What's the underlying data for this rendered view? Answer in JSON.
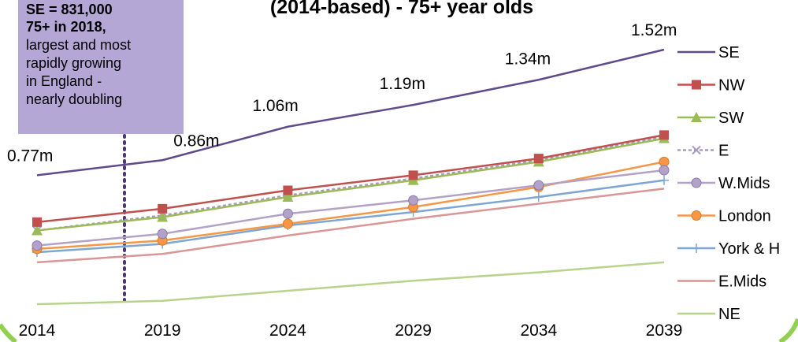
{
  "title_fragment": "(2014-based) - 75+ year olds",
  "callout": {
    "bold_line1": "SE = 831,000",
    "bold_line2": "75+ in 2018,",
    "line3": "largest and most",
    "line4": "rapidly growing",
    "line5": "in England -",
    "line6": "nearly doubling"
  },
  "se_labels": [
    "0.77m",
    "0.86m",
    "1.06m",
    "1.19m",
    "1.34m",
    "1.52m"
  ],
  "chart_data": {
    "type": "line",
    "x": [
      2014,
      2019,
      2024,
      2029,
      2034,
      2039
    ],
    "ylim": [
      0,
      1.6
    ],
    "series": [
      {
        "name": "SE",
        "color": "#5f4b8b",
        "marker": "none",
        "values": [
          0.77,
          0.86,
          1.06,
          1.19,
          1.34,
          1.52
        ]
      },
      {
        "name": "NW",
        "color": "#c0504d",
        "marker": "square",
        "values": [
          0.49,
          0.57,
          0.68,
          0.77,
          0.87,
          1.01
        ]
      },
      {
        "name": "SW",
        "color": "#9bbb59",
        "marker": "triangle",
        "values": [
          0.44,
          0.52,
          0.64,
          0.74,
          0.85,
          0.99
        ]
      },
      {
        "name": "E",
        "color": "#a99bbf",
        "marker": "x",
        "values": [
          0.44,
          0.53,
          0.65,
          0.75,
          0.86,
          1.0
        ]
      },
      {
        "name": "W.Mids",
        "color": "#b3a2c7",
        "marker": "circle",
        "values": [
          0.35,
          0.42,
          0.54,
          0.62,
          0.71,
          0.8
        ]
      },
      {
        "name": "London",
        "color": "#f79646",
        "marker": "circle",
        "values": [
          0.33,
          0.38,
          0.48,
          0.58,
          0.7,
          0.85
        ]
      },
      {
        "name": "York & H",
        "color": "#7fa6d3",
        "marker": "plus",
        "values": [
          0.31,
          0.36,
          0.47,
          0.55,
          0.64,
          0.74
        ]
      },
      {
        "name": "E.Mids",
        "color": "#d99694",
        "marker": "none",
        "values": [
          0.25,
          0.3,
          0.41,
          0.51,
          0.6,
          0.69
        ]
      },
      {
        "name": "NE",
        "color": "#b8d38c",
        "marker": "none",
        "values": [
          0.0,
          0.02,
          0.08,
          0.14,
          0.19,
          0.25
        ]
      }
    ],
    "legend_position": "right",
    "grid": false
  },
  "colors": {
    "callout_bg": "#b4a7d6",
    "vline": "#4b3a74",
    "frame": "#92d050"
  }
}
